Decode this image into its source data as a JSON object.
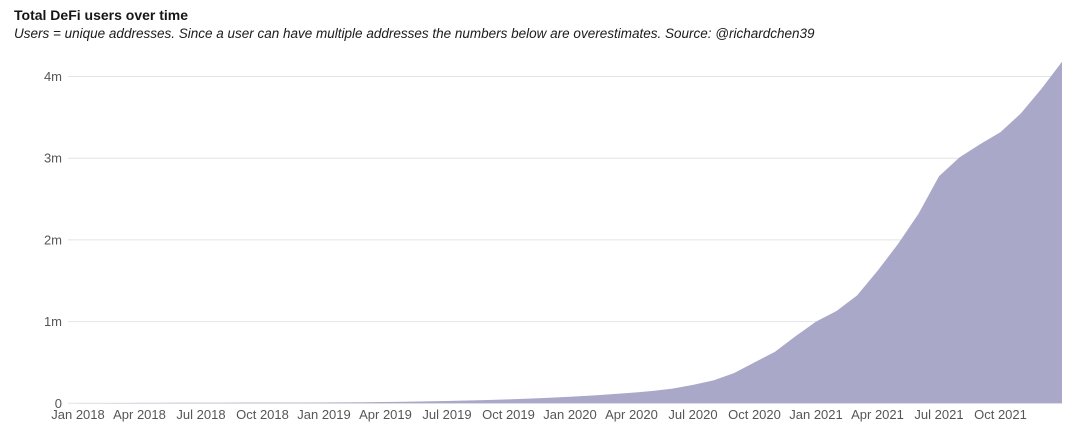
{
  "header": {
    "title": "Total DeFi users over time",
    "subtitle": "Users = unique addresses. Since a user can have multiple addresses the numbers below are overestimates. Source: @richardchen39"
  },
  "chart_data": {
    "type": "area",
    "title": "Total DeFi users over time",
    "subtitle": "Users = unique addresses. Since a user can have multiple addresses the numbers below are overestimates. Source: @richardchen39",
    "series": [
      {
        "name": "Total DeFi users",
        "x_months": [
          "2018-01",
          "2018-02",
          "2018-03",
          "2018-04",
          "2018-05",
          "2018-06",
          "2018-07",
          "2018-08",
          "2018-09",
          "2018-10",
          "2018-11",
          "2018-12",
          "2019-01",
          "2019-02",
          "2019-03",
          "2019-04",
          "2019-05",
          "2019-06",
          "2019-07",
          "2019-08",
          "2019-09",
          "2019-10",
          "2019-11",
          "2019-12",
          "2020-01",
          "2020-02",
          "2020-03",
          "2020-04",
          "2020-05",
          "2020-06",
          "2020-07",
          "2020-08",
          "2020-09",
          "2020-10",
          "2020-11",
          "2020-12",
          "2021-01",
          "2021-02",
          "2021-03",
          "2021-04",
          "2021-05",
          "2021-06",
          "2021-07",
          "2021-08",
          "2021-09",
          "2021-10",
          "2021-11",
          "2021-12",
          "2022-01"
        ],
        "values_millions": [
          0.002,
          0.003,
          0.004,
          0.005,
          0.005,
          0.006,
          0.007,
          0.007,
          0.008,
          0.008,
          0.009,
          0.009,
          0.01,
          0.011,
          0.013,
          0.016,
          0.019,
          0.023,
          0.028,
          0.034,
          0.04,
          0.048,
          0.057,
          0.067,
          0.08,
          0.094,
          0.11,
          0.128,
          0.15,
          0.18,
          0.225,
          0.28,
          0.37,
          0.5,
          0.63,
          0.82,
          1.0,
          1.13,
          1.32,
          1.62,
          1.95,
          2.32,
          2.78,
          3.01,
          3.17,
          3.32,
          3.55,
          3.85,
          4.18
        ]
      }
    ],
    "x_ticks": [
      {
        "month_index": 0,
        "label": "Jan 2018"
      },
      {
        "month_index": 3,
        "label": "Apr 2018"
      },
      {
        "month_index": 6,
        "label": "Jul 2018"
      },
      {
        "month_index": 9,
        "label": "Oct 2018"
      },
      {
        "month_index": 12,
        "label": "Jan 2019"
      },
      {
        "month_index": 15,
        "label": "Apr 2019"
      },
      {
        "month_index": 18,
        "label": "Jul 2019"
      },
      {
        "month_index": 21,
        "label": "Oct 2019"
      },
      {
        "month_index": 24,
        "label": "Jan 2020"
      },
      {
        "month_index": 27,
        "label": "Apr 2020"
      },
      {
        "month_index": 30,
        "label": "Jul 2020"
      },
      {
        "month_index": 33,
        "label": "Oct 2020"
      },
      {
        "month_index": 36,
        "label": "Jan 2021"
      },
      {
        "month_index": 39,
        "label": "Apr 2021"
      },
      {
        "month_index": 42,
        "label": "Jul 2021"
      },
      {
        "month_index": 45,
        "label": "Oct 2021"
      }
    ],
    "y_ticks": [
      {
        "value": 0,
        "label": "0"
      },
      {
        "value": 1,
        "label": "1m"
      },
      {
        "value": 2,
        "label": "2m"
      },
      {
        "value": 3,
        "label": "3m"
      },
      {
        "value": 4,
        "label": "4m"
      }
    ],
    "ylim": [
      0,
      4.3
    ],
    "xlabel": "",
    "ylabel": "",
    "grid": true,
    "legend": "none",
    "colors": {
      "area_fill": "#a9a8c9",
      "gridline": "#e4e4e4",
      "tick_text": "#565656",
      "title_text": "#161616"
    }
  }
}
